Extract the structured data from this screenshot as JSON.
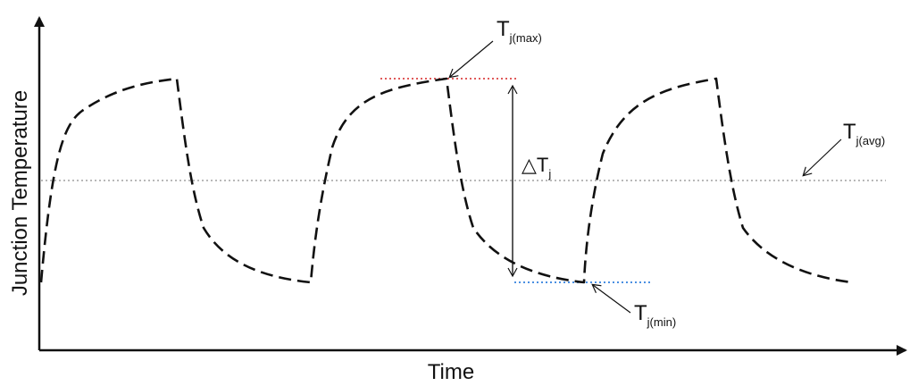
{
  "axes": {
    "x_label": "Time",
    "y_label": "Junction Temperature"
  },
  "annotations": {
    "tj_max": {
      "main": "T",
      "sub": "j(max)"
    },
    "tj_min": {
      "main": "T",
      "sub": "j(min)"
    },
    "tj_avg": {
      "main": "T",
      "sub": "j(avg)"
    },
    "delta_tj": {
      "main": "△T",
      "sub": "j"
    }
  },
  "colors": {
    "curve": "#111111",
    "tj_max_line": "#e05a5a",
    "tj_min_line": "#4a90e2",
    "tj_avg_line": "#b8b8b8",
    "axis": "#111111"
  }
}
